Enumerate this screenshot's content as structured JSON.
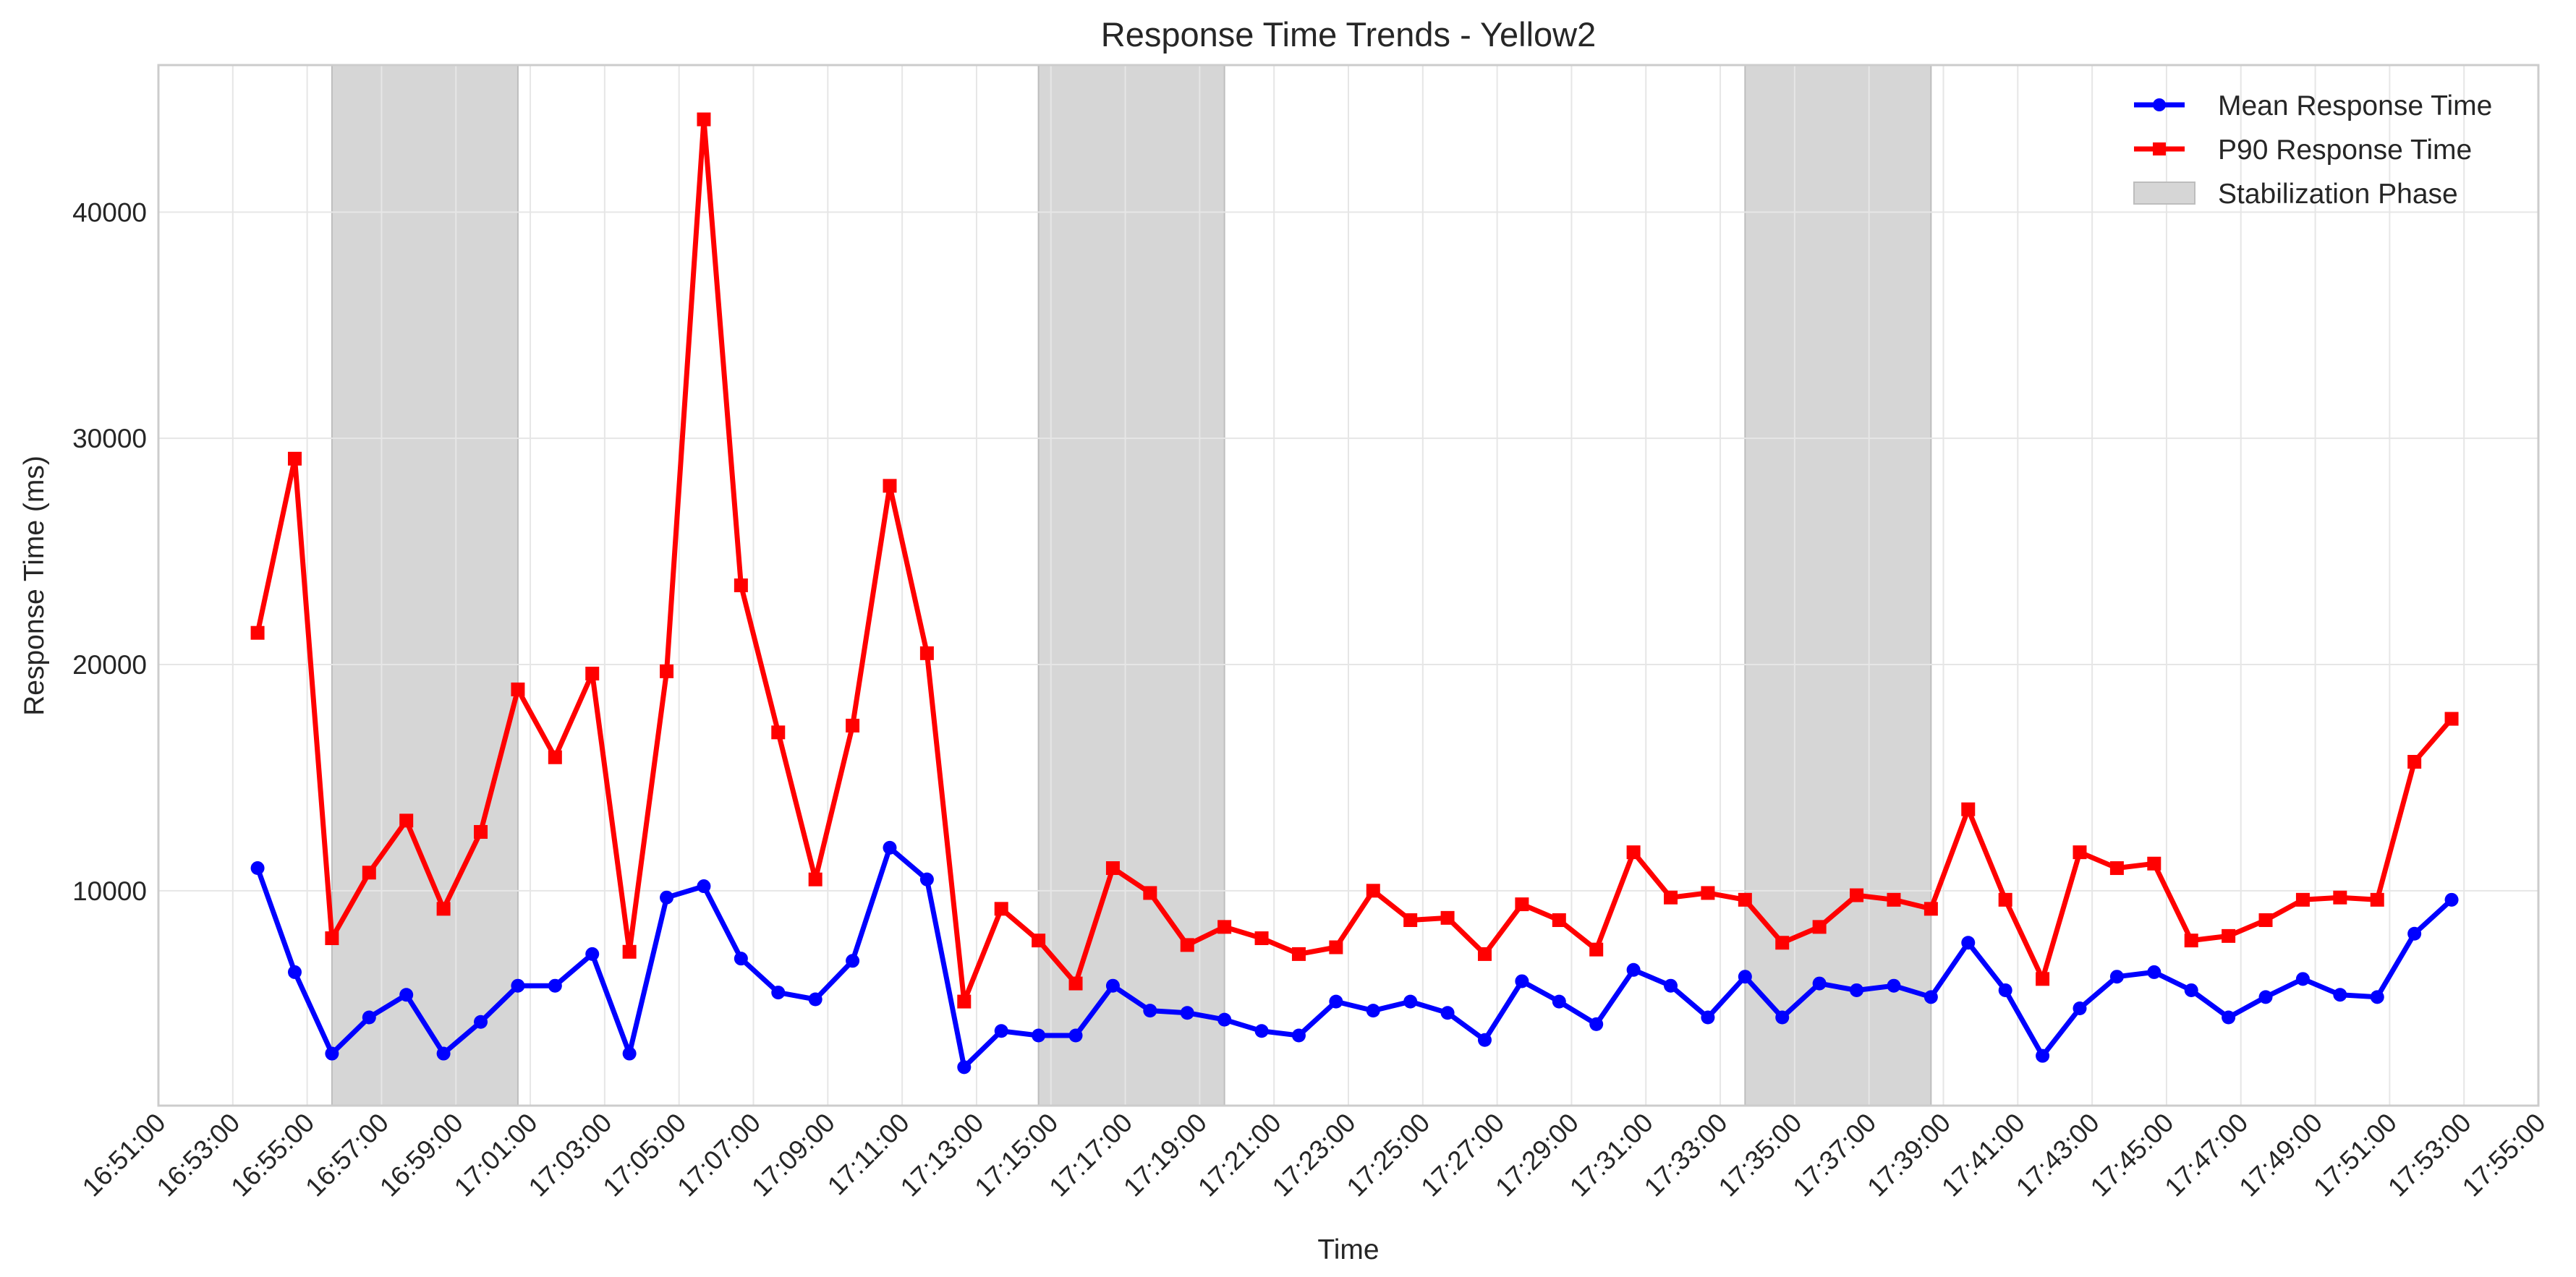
{
  "chart_data": {
    "type": "line",
    "title": "Response Time Trends - Yellow2",
    "xlabel": "Time",
    "ylabel": "Response Time (ms)",
    "x_range": [
      "16:51:00",
      "17:55:00"
    ],
    "ylim": [
      500,
      46500
    ],
    "grid": true,
    "legend_position": "top-right",
    "x_ticks": [
      "16:51:00",
      "16:53:00",
      "16:55:00",
      "16:57:00",
      "16:59:00",
      "17:01:00",
      "17:03:00",
      "17:05:00",
      "17:07:00",
      "17:09:00",
      "17:11:00",
      "17:13:00",
      "17:15:00",
      "17:17:00",
      "17:19:00",
      "17:21:00",
      "17:23:00",
      "17:25:00",
      "17:27:00",
      "17:29:00",
      "17:31:00",
      "17:33:00",
      "17:35:00",
      "17:37:00",
      "17:39:00",
      "17:41:00",
      "17:43:00",
      "17:45:00",
      "17:47:00",
      "17:49:00",
      "17:51:00",
      "17:53:00",
      "17:55:00"
    ],
    "y_ticks": [
      10000,
      20000,
      30000,
      40000
    ],
    "x": [
      "16:53:40",
      "16:54:40",
      "16:55:40",
      "16:56:40",
      "16:57:40",
      "16:58:40",
      "16:59:40",
      "17:00:40",
      "17:01:40",
      "17:02:40",
      "17:03:40",
      "17:04:40",
      "17:05:40",
      "17:06:40",
      "17:07:40",
      "17:08:40",
      "17:09:40",
      "17:10:40",
      "17:11:40",
      "17:12:40",
      "17:13:40",
      "17:14:40",
      "17:15:40",
      "17:16:40",
      "17:17:40",
      "17:18:40",
      "17:19:40",
      "17:20:40",
      "17:21:40",
      "17:22:40",
      "17:23:40",
      "17:24:40",
      "17:25:40",
      "17:26:40",
      "17:27:40",
      "17:28:40",
      "17:29:40",
      "17:30:40",
      "17:31:40",
      "17:32:40",
      "17:33:40",
      "17:34:40",
      "17:35:40",
      "17:36:40",
      "17:37:40",
      "17:38:40",
      "17:39:40",
      "17:40:40",
      "17:41:40",
      "17:42:40",
      "17:43:40",
      "17:44:40",
      "17:45:40",
      "17:46:40",
      "17:47:40",
      "17:48:40",
      "17:49:40",
      "17:50:40",
      "17:51:40",
      "17:52:40"
    ],
    "series": [
      {
        "name": "Mean Response Time",
        "color": "#0000ff",
        "marker": "circle",
        "values": [
          11000,
          6400,
          2800,
          4400,
          5400,
          2800,
          4200,
          5800,
          5800,
          7200,
          2800,
          9700,
          10200,
          7000,
          5500,
          5200,
          6900,
          11900,
          10500,
          2200,
          3800,
          3600,
          3600,
          5800,
          4700,
          4600,
          4300,
          3800,
          3600,
          5100,
          4700,
          5100,
          4600,
          3400,
          6000,
          5100,
          4100,
          6500,
          5800,
          4400,
          6200,
          4400,
          5900,
          5600,
          5800,
          5300,
          7700,
          5600,
          2700,
          4800,
          6200,
          6400,
          5600,
          4400,
          5300,
          6100,
          5400,
          5300,
          8100,
          9600
        ]
      },
      {
        "name": "P90 Response Time",
        "color": "#ff0000",
        "marker": "square",
        "values": [
          21400,
          29100,
          7900,
          10800,
          13100,
          9200,
          12600,
          18900,
          15900,
          19600,
          7300,
          19700,
          44100,
          23500,
          17000,
          10500,
          17300,
          27900,
          20500,
          5100,
          9200,
          7800,
          5900,
          11000,
          9900,
          7600,
          8400,
          7900,
          7200,
          7500,
          10000,
          8700,
          8800,
          7200,
          9400,
          8700,
          7400,
          11700,
          9700,
          9900,
          9600,
          7700,
          8400,
          9800,
          9600,
          9200,
          13600,
          9600,
          6100,
          11700,
          11000,
          11200,
          7800,
          8000,
          8700,
          9600,
          9700,
          9600,
          15700,
          17600
        ]
      }
    ],
    "shaded_regions": [
      {
        "name": "Stabilization Phase",
        "start": "16:55:40",
        "end": "17:00:40"
      },
      {
        "start": "17:14:40",
        "end": "17:19:40"
      },
      {
        "start": "17:33:40",
        "end": "17:38:40"
      }
    ],
    "shade_color": "#d6d6d6",
    "legend": [
      {
        "label": "Mean Response Time",
        "color": "#0000ff",
        "kind": "line-circle"
      },
      {
        "label": "P90 Response Time",
        "color": "#ff0000",
        "kind": "line-square"
      },
      {
        "label": "Stabilization Phase",
        "color": "#d6d6d6",
        "kind": "patch"
      }
    ]
  }
}
